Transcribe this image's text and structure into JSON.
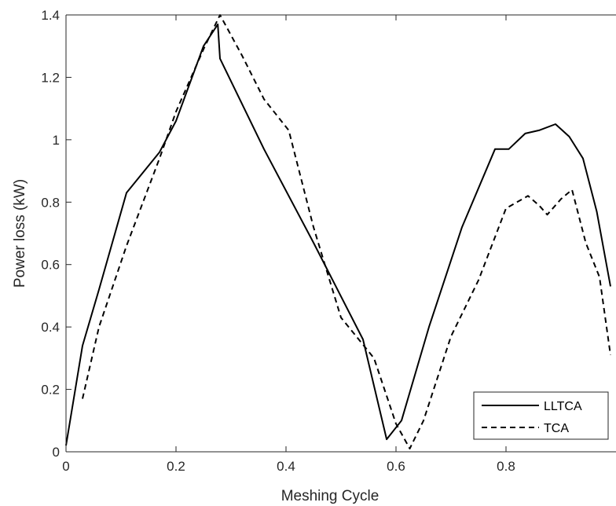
{
  "chart_data": {
    "type": "line",
    "title": "",
    "xlabel": "Meshing Cycle",
    "ylabel": "Power loss (kW)",
    "xlim": [
      0,
      1
    ],
    "ylim": [
      0,
      1.4
    ],
    "xticks": [
      0,
      0.2,
      0.4,
      0.6,
      0.8
    ],
    "xtick_labels": [
      "0",
      "0.2",
      "0.4",
      "0.6",
      "0.8"
    ],
    "yticks": [
      0,
      0.2,
      0.4,
      0.6,
      0.8,
      1,
      1.2,
      1.4
    ],
    "ytick_labels": [
      "0",
      "0.2",
      "0.4",
      "0.6",
      "0.8",
      "1",
      "1.2",
      "1.4"
    ],
    "grid": false,
    "legend": "bottom-right",
    "series": [
      {
        "name": "LLTCA",
        "style": "solid",
        "color": "#000000",
        "x": [
          0,
          0.03,
          0.06,
          0.11,
          0.17,
          0.2,
          0.25,
          0.276,
          0.28,
          0.36,
          0.45,
          0.54,
          0.583,
          0.61,
          0.66,
          0.72,
          0.78,
          0.805,
          0.835,
          0.86,
          0.89,
          0.915,
          0.94,
          0.965,
          0.99
        ],
        "y": [
          0.02,
          0.34,
          0.52,
          0.83,
          0.96,
          1.06,
          1.3,
          1.37,
          1.26,
          0.97,
          0.67,
          0.36,
          0.04,
          0.1,
          0.4,
          0.72,
          0.97,
          0.97,
          1.02,
          1.03,
          1.05,
          1.01,
          0.94,
          0.77,
          0.53
        ]
      },
      {
        "name": "TCA",
        "style": "dashed",
        "color": "#000000",
        "x": [
          0.03,
          0.06,
          0.11,
          0.17,
          0.2,
          0.25,
          0.28,
          0.32,
          0.36,
          0.405,
          0.45,
          0.5,
          0.56,
          0.6,
          0.625,
          0.65,
          0.7,
          0.75,
          0.8,
          0.84,
          0.86,
          0.875,
          0.9,
          0.92,
          0.945,
          0.97,
          0.99
        ],
        "y": [
          0.17,
          0.4,
          0.66,
          0.94,
          1.09,
          1.29,
          1.4,
          1.27,
          1.13,
          1.03,
          0.72,
          0.43,
          0.3,
          0.09,
          0.01,
          0.1,
          0.37,
          0.55,
          0.78,
          0.82,
          0.79,
          0.76,
          0.81,
          0.84,
          0.67,
          0.56,
          0.31
        ]
      }
    ]
  }
}
